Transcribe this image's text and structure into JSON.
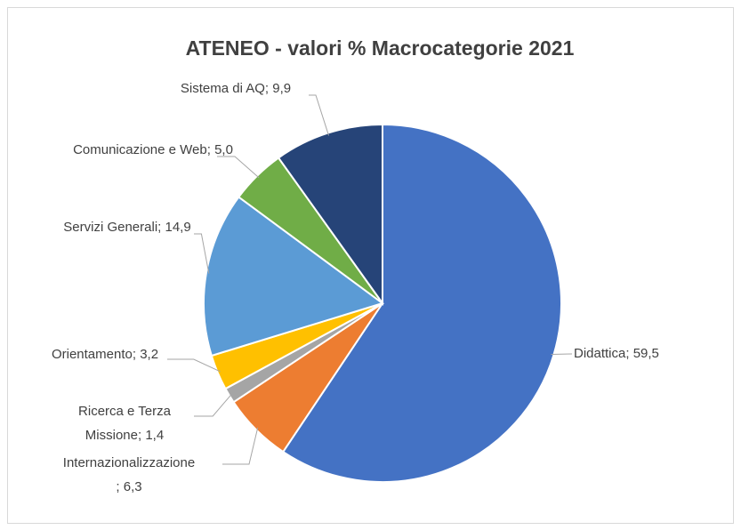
{
  "chart_data": {
    "type": "pie",
    "title": "ATENEO - valori % Macrocategorie 2021",
    "categories": [
      "Didattica",
      "Internazionalizzazione",
      "Ricerca e Terza Missione",
      "Orientamento",
      "Servizi Generali",
      "Comunicazione e Web",
      "Sistema di AQ"
    ],
    "values": [
      59.5,
      6.3,
      1.4,
      3.2,
      14.9,
      5.0,
      9.9
    ],
    "value_labels": [
      "59,5",
      "6,3",
      "1,4",
      "3,2",
      "14,9",
      "5,0",
      "9,9"
    ],
    "label_separator": "; ",
    "colors": [
      "#4472c4",
      "#ed7d31",
      "#a5a5a5",
      "#ffc000",
      "#5b9bd5",
      "#70ad47",
      "#264478"
    ]
  }
}
